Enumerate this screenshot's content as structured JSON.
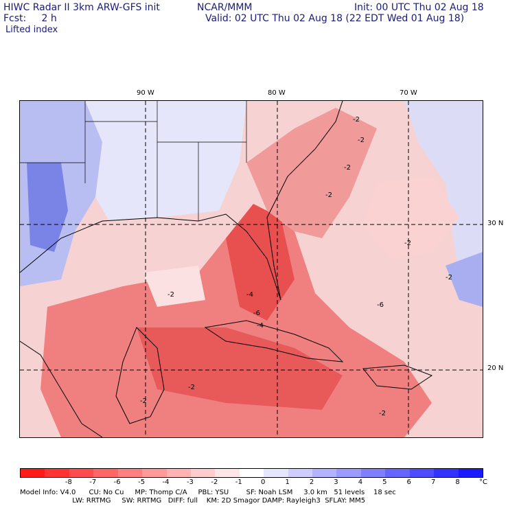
{
  "header": {
    "line1_left": "HIWC Radar II 3km ARW-GFS init",
    "line1_mid": "NCAR/MMM",
    "line1_right": "Init: 00 UTC Thu 02 Aug 18",
    "line2_left": "Fcst:     2 h",
    "line2_right": "Valid: 02 UTC Thu 02 Aug 18 (22 EDT Wed 01 Aug 18)",
    "field": "Lifted index"
  },
  "lon_labels": [
    "90 W",
    "80 W",
    "70 W"
  ],
  "lat_labels": [
    "30 N",
    "20 N"
  ],
  "contour_labels": [
    "-2",
    "-2",
    "-2",
    "-2",
    "-2",
    "-4",
    "-4",
    "-6",
    "-6",
    "-2",
    "-2",
    "-2",
    "-2",
    "-2"
  ],
  "colorbar": {
    "ticks": [
      "-8",
      "-7",
      "-6",
      "-5",
      "-4",
      "-3",
      "-2",
      "-1",
      "0",
      "1",
      "2",
      "3",
      "4",
      "5",
      "6",
      "7",
      "8"
    ],
    "unit": "°C",
    "colors": [
      "#ff1a1a",
      "#ff3333",
      "#ff4d4d",
      "#ff6666",
      "#ff8080",
      "#ff9a9a",
      "#ffb3b3",
      "#ffcdcd",
      "#ffe6e6",
      "#ffffff",
      "#e6e6ff",
      "#cdcdff",
      "#b3b3ff",
      "#9a9aff",
      "#8080ff",
      "#6666ff",
      "#4d4dff",
      "#3333ff",
      "#1a1aff"
    ]
  },
  "footer": {
    "line1": "Model Info: V4.0      CU: No Cu     MP: Thomp C/A     PBL: YSU        SF: Noah LSM     3.0 km   51 levels    18 sec",
    "line2": "                        LW: RRTMG     SW: RRTMG   DIFF: full    KM: 2D Smagor DAMP: Rayleigh3  SFLAY: MM5"
  }
}
